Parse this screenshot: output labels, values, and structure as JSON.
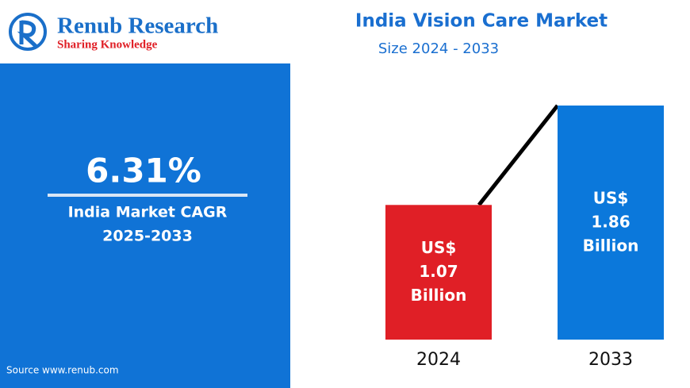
{
  "brand": {
    "name": "Renub Research",
    "tagline": "Sharing Knowledge"
  },
  "summary": {
    "cagr": {
      "value": 6.31,
      "label": "6.31%"
    },
    "caption": "India Market CAGR",
    "period": "2025-2033"
  },
  "source": "Source  www.renub.com",
  "chart_data": {
    "type": "bar",
    "title": "India Vision Care Market",
    "subtitle": "Size 2024 - 2033",
    "categories": [
      "2024",
      "2033"
    ],
    "values": [
      1.07,
      1.86
    ],
    "value_labels": [
      "US$ 1.07 Billion",
      "US$ 1.86 Billion"
    ],
    "colors": [
      "#e01f26",
      "#0b78db"
    ]
  }
}
